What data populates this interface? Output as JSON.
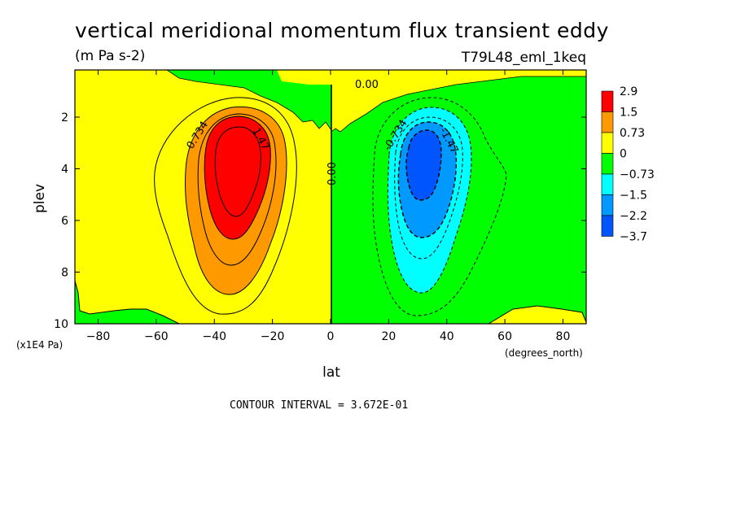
{
  "chart_data": {
    "type": "contour",
    "title": "vertical meridional momentum flux transient eddy",
    "units": "(m Pa s-2)",
    "dataset": "T79L48_eml_1keq",
    "xlabel": "lat",
    "xunits": "(degrees_north)",
    "ylabel": "plev",
    "yunits": "(x1E4 Pa)",
    "xlim": [
      -88,
      88
    ],
    "ylim": [
      10,
      0.2
    ],
    "x_ticks": [
      -80,
      -60,
      -40,
      -20,
      0,
      20,
      40,
      60,
      80
    ],
    "x_tick_labels": [
      "−80",
      "−60",
      "−40",
      "−20",
      "0",
      "20",
      "40",
      "60",
      "80"
    ],
    "y_ticks": [
      2,
      4,
      6,
      8,
      10
    ],
    "y_tick_labels": [
      "2",
      "4",
      "6",
      "8",
      "10"
    ],
    "contour_interval_text": "CONTOUR INTERVAL = 3.672E-01",
    "contour_labels": [
      "0.734",
      "1.47",
      "0.00",
      "0.00",
      "-0.734",
      "-1.47"
    ],
    "colorbar": {
      "levels": [
        "2.9",
        "1.5",
        "0.73",
        "0",
        "−0.73",
        "−1.5",
        "−2.2",
        "−3.7"
      ],
      "colors": [
        "#ff0000",
        "#ff9900",
        "#ffff00",
        "#00ff00",
        "#00ffff",
        "#0099ff",
        "#0055ff"
      ]
    },
    "features": [
      {
        "name": "positive maximum",
        "lat": -33,
        "plev": 3.5,
        "value": 2.9
      },
      {
        "name": "negative minimum",
        "lat": 33,
        "plev": 3.5,
        "value": -3.7
      }
    ]
  }
}
